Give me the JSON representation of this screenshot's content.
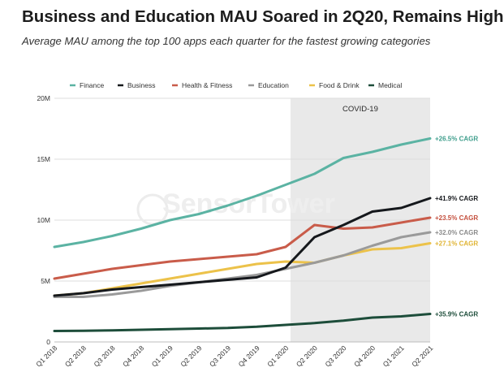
{
  "chart_data": {
    "type": "line",
    "title": "Business and Education MAU Soared in 2Q20, Remains High",
    "subtitle": "Average MAU among the top 100 apps each quarter for the fastest growing categories",
    "categories": [
      "Q1 2018",
      "Q2 2018",
      "Q3 2018",
      "Q4 2018",
      "Q1 2019",
      "Q2 2019",
      "Q3 2019",
      "Q4 2019",
      "Q1 2020",
      "Q2 2020",
      "Q3 2020",
      "Q4 2020",
      "Q1 2021",
      "Q2 2021"
    ],
    "y_ticks": [
      "0",
      "5M",
      "10M",
      "15M",
      "20M"
    ],
    "ylim": [
      0,
      20
    ],
    "y_unit": "millions of MAU",
    "grid": "horizontal",
    "legend_position": "top",
    "shaded_region": {
      "label": "COVID-19",
      "from": "Q1 2020",
      "to": "Q2 2021"
    },
    "series": [
      {
        "name": "Finance",
        "color": "#5bb3a3",
        "label_color": "#3f9e8c",
        "cagr": "+26.5% CAGR",
        "values": [
          7.8,
          8.2,
          8.7,
          9.3,
          10.0,
          10.5,
          11.2,
          12.0,
          12.9,
          13.8,
          15.1,
          15.6,
          16.2,
          16.7
        ]
      },
      {
        "name": "Business",
        "color": "#15181c",
        "label_color": "#15181c",
        "cagr": "+41.9% CAGR",
        "values": [
          3.8,
          4.0,
          4.3,
          4.5,
          4.7,
          4.9,
          5.1,
          5.3,
          6.1,
          8.6,
          9.6,
          10.7,
          11.0,
          11.8
        ]
      },
      {
        "name": "Health & Fitness",
        "color": "#c95c4a",
        "label_color": "#c44f3d",
        "cagr": "+23.5% CAGR",
        "values": [
          5.2,
          5.6,
          6.0,
          6.3,
          6.6,
          6.8,
          7.0,
          7.2,
          7.8,
          9.6,
          9.3,
          9.4,
          9.8,
          10.2
        ]
      },
      {
        "name": "Education",
        "color": "#9a9a9a",
        "label_color": "#8a8a8a",
        "cagr": "+32.0% CAGR",
        "values": [
          3.7,
          3.7,
          3.9,
          4.2,
          4.6,
          4.9,
          5.2,
          5.5,
          6.0,
          6.5,
          7.1,
          7.9,
          8.6,
          9.0
        ]
      },
      {
        "name": "Food & Drink",
        "color": "#ecc24a",
        "label_color": "#e0b433",
        "cagr": "+27.1% CAGR",
        "values": [
          3.8,
          4.0,
          4.4,
          4.8,
          5.2,
          5.6,
          6.0,
          6.4,
          6.6,
          6.5,
          7.1,
          7.6,
          7.7,
          8.1
        ]
      },
      {
        "name": "Medical",
        "color": "#1d4d3a",
        "label_color": "#1d4d3a",
        "cagr": "+35.9% CAGR",
        "values": [
          0.9,
          0.92,
          0.95,
          1.0,
          1.05,
          1.1,
          1.15,
          1.25,
          1.4,
          1.55,
          1.75,
          2.0,
          2.1,
          2.3
        ]
      }
    ],
    "watermark": "SensorTower"
  }
}
